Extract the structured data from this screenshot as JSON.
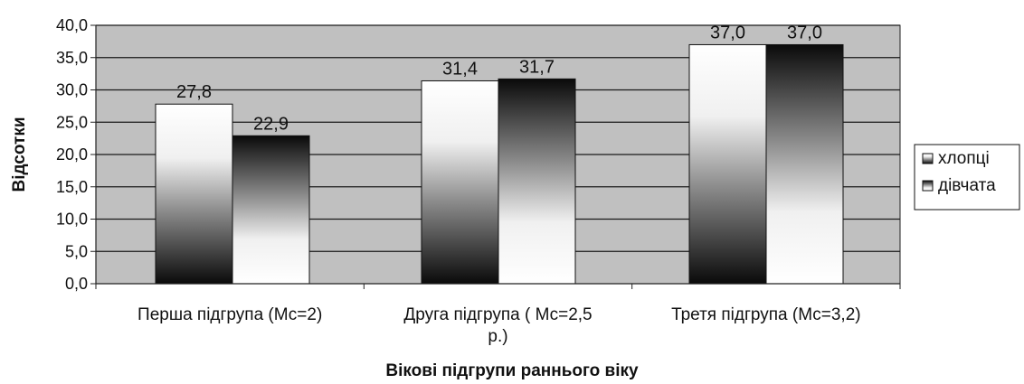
{
  "chart_data": {
    "type": "bar",
    "title": "",
    "xlabel": "Вікові підгрупи раннього віку",
    "ylabel": "Відсотки",
    "ylim": [
      0,
      40
    ],
    "yticks": [
      "0,0",
      "5,0",
      "10,0",
      "15,0",
      "20,0",
      "25,0",
      "30,0",
      "35,0",
      "40,0"
    ],
    "categories": [
      [
        "Перша підгрупа (Мс=2)"
      ],
      [
        "Друга підгрупа ( Мс=2,5",
        "р.)"
      ],
      [
        "Третя підгрупа (Мс=3,2)"
      ]
    ],
    "series": [
      {
        "name": "хлопці",
        "values": [
          27.8,
          31.4,
          37.0
        ],
        "labels": [
          "27,8",
          "31,4",
          "37,0"
        ]
      },
      {
        "name": "дівчата",
        "values": [
          22.9,
          31.7,
          37.0
        ],
        "labels": [
          "22,9",
          "31,7",
          "37,0"
        ]
      }
    ],
    "legend_position": "right",
    "grid": true,
    "plot_background": "#c0c0c0"
  }
}
